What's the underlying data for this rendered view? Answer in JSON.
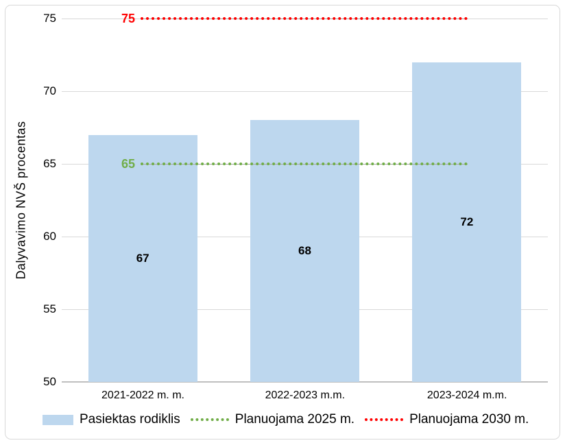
{
  "chart_data": {
    "type": "bar",
    "title": "",
    "categories": [
      "2021-2022 m. m.",
      "2022-2023 m.m.",
      "2023-2024 m.m."
    ],
    "bar_series": {
      "name": "Pasiektas rodiklis",
      "values": [
        67,
        68,
        72
      ],
      "color": "#BDD7EE"
    },
    "target_lines": [
      {
        "name": "Planuojama 2025 m.",
        "value": 65,
        "label": "65",
        "color": "#70AD47",
        "style": "dotted"
      },
      {
        "name": "Planuojama 2030 m.",
        "value": 75,
        "label": "75",
        "color": "#FF0000",
        "style": "dotted"
      }
    ],
    "ylabel": "Dalyvavimo NVŠ procentas",
    "xlabel": "",
    "ylim": [
      50,
      75
    ],
    "yticks": [
      50,
      55,
      60,
      65,
      70,
      75
    ],
    "grid": true,
    "legend_position": "bottom"
  },
  "legend": {
    "items": [
      {
        "label": "Pasiektas rodiklis",
        "swatch": "bar",
        "color": "#BDD7EE"
      },
      {
        "label": "Planuojama 2025 m.",
        "swatch": "dotted-line",
        "color": "#70AD47"
      },
      {
        "label": "Planuojama 2030 m.",
        "swatch": "dotted-line",
        "color": "#FF0000"
      }
    ]
  },
  "colors": {
    "bar_fill": "#BDD7EE",
    "green_line": "#70AD47",
    "red_line": "#FF0000",
    "gridline": "#D9D9D9",
    "axis_line": "#BFBFBF",
    "connector_gray": "#A6A6A6"
  }
}
